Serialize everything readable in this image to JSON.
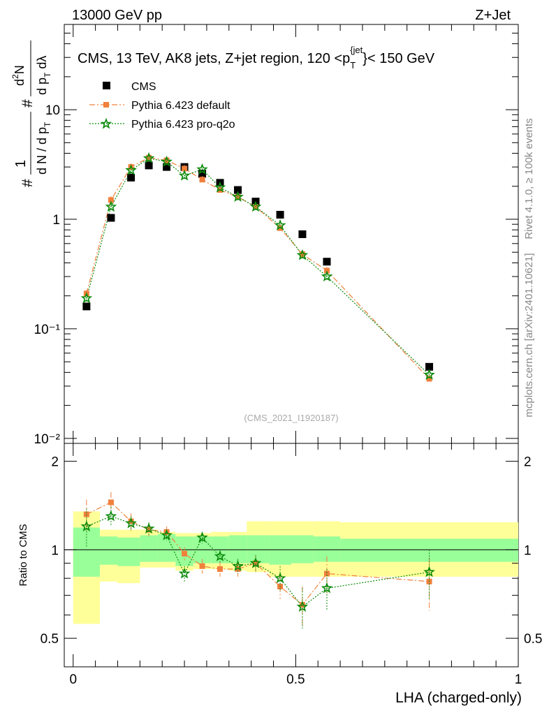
{
  "header": {
    "left": "13000 GeV pp",
    "right": "Z+Jet"
  },
  "side_labels": {
    "rivet": "Rivet 4.1.0, ≥ 100k events",
    "source": "mcplots.cern.ch [arXiv:2401.10621]"
  },
  "colors": {
    "data": "#000000",
    "default": "#f0803c",
    "proq2o": "#0a8a0a",
    "band_inner": "#99ff99",
    "band_outer": "#ffff99"
  },
  "chart_data": [
    {
      "type": "scatter",
      "title": "CMS, 13 TeV, AK8 jets, Z+jet region, 120 <p_T^{jet}< 150 GeV",
      "analysis": "(CMS_2021_I1920187)",
      "ylabel": "1/dN/dp_T  d²N/dp_T dλ",
      "yscale": "log",
      "ylim": [
        0.009,
        60
      ],
      "xlim": [
        -0.02,
        1.0
      ],
      "ytick_labels": [
        "10⁻²",
        "10⁻¹",
        "1",
        "10"
      ],
      "legend": [
        "CMS",
        "Pythia 6.423 default",
        "Pythia 6.423 pro-q2o"
      ],
      "bin_edges": [
        0.0,
        0.06,
        0.1,
        0.15,
        0.19,
        0.23,
        0.27,
        0.31,
        0.35,
        0.39,
        0.44,
        0.49,
        0.54,
        0.6,
        1.0
      ],
      "x": [
        0.03,
        0.085,
        0.13,
        0.17,
        0.21,
        0.25,
        0.29,
        0.33,
        0.37,
        0.41,
        0.465,
        0.515,
        0.57,
        0.8
      ],
      "series": [
        {
          "name": "CMS",
          "values": [
            0.16,
            1.03,
            2.4,
            3.1,
            3.0,
            3.0,
            2.6,
            2.15,
            1.85,
            1.45,
            1.1,
            0.73,
            0.41,
            0.045
          ]
        },
        {
          "name": "Pythia 6.423 default",
          "values": [
            0.21,
            1.5,
            3.0,
            3.65,
            3.45,
            2.9,
            2.3,
            1.85,
            1.6,
            1.3,
            0.83,
            0.48,
            0.34,
            0.035
          ]
        },
        {
          "name": "Pythia 6.423 pro-q2o",
          "values": [
            0.19,
            1.3,
            2.8,
            3.6,
            3.35,
            2.5,
            2.85,
            1.95,
            1.6,
            1.3,
            0.88,
            0.47,
            0.3,
            0.038
          ]
        }
      ]
    },
    {
      "type": "scatter",
      "ylabel": "Ratio to CMS",
      "xlabel": "LHA (charged-only)",
      "ylim": [
        0.4,
        2.3
      ],
      "xlim": [
        -0.02,
        1.0
      ],
      "ytick_labels": [
        "0.5",
        "1",
        "2"
      ],
      "xtick_labels": [
        "0",
        "0.5",
        "1"
      ],
      "band_inner": {
        "lo": [
          0.81,
          0.89,
          0.88,
          0.91,
          0.91,
          0.88,
          0.9,
          0.9,
          0.9,
          0.9,
          0.89,
          0.9,
          0.91,
          0.91
        ],
        "hi": [
          1.19,
          1.11,
          1.1,
          1.12,
          1.13,
          1.11,
          1.11,
          1.11,
          1.12,
          1.12,
          1.12,
          1.12,
          1.11,
          1.09
        ]
      },
      "band_outer": {
        "lo": [
          0.56,
          0.78,
          0.77,
          0.87,
          0.87,
          0.85,
          0.86,
          0.86,
          0.85,
          0.84,
          0.81,
          0.81,
          0.81,
          0.81
        ],
        "hi": [
          1.35,
          1.17,
          1.17,
          1.17,
          1.15,
          1.14,
          1.14,
          1.15,
          1.15,
          1.25,
          1.25,
          1.25,
          1.25,
          1.24
        ]
      },
      "series": [
        {
          "name": "Pythia 6.423 default",
          "values": [
            1.32,
            1.45,
            1.25,
            1.17,
            1.15,
            0.97,
            0.88,
            0.86,
            0.86,
            0.9,
            0.75,
            0.65,
            0.83,
            0.78
          ],
          "errors": [
            0.16,
            0.12,
            0.08,
            0.06,
            0.05,
            0.05,
            0.05,
            0.05,
            0.05,
            0.06,
            0.07,
            0.1,
            0.12,
            0.16
          ]
        },
        {
          "name": "Pythia 6.423 pro-q2o",
          "values": [
            1.2,
            1.3,
            1.23,
            1.18,
            1.12,
            0.83,
            1.1,
            0.95,
            0.88,
            0.9,
            0.8,
            0.64,
            0.74,
            0.84
          ],
          "errors": [
            0.18,
            0.1,
            0.07,
            0.06,
            0.05,
            0.05,
            0.05,
            0.05,
            0.05,
            0.06,
            0.08,
            0.1,
            0.12,
            0.16
          ]
        }
      ]
    }
  ]
}
